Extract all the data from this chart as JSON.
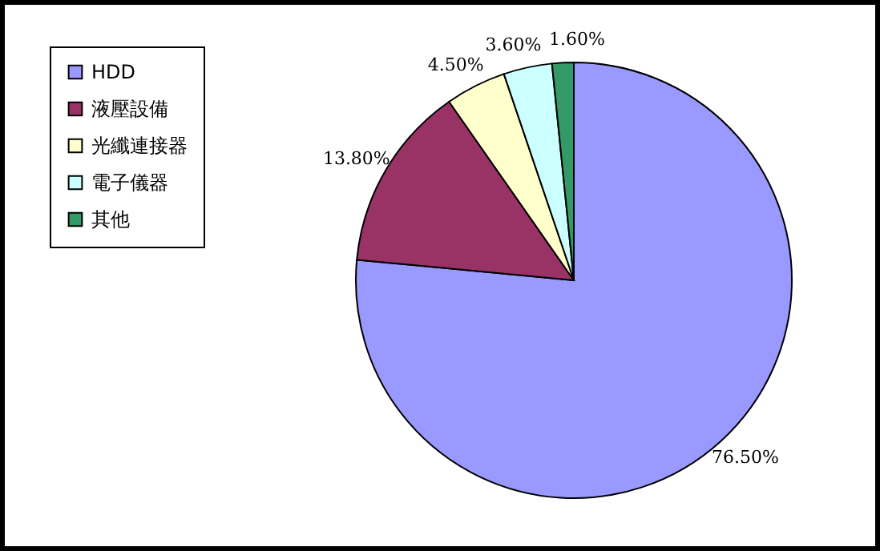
{
  "chart_data": {
    "type": "pie",
    "categories": [
      "HDD",
      "液壓設備",
      "光纖連接器",
      "電子儀器",
      "其他"
    ],
    "values": [
      76.5,
      13.8,
      4.5,
      3.6,
      1.6
    ],
    "colors": [
      "#9999ff",
      "#993366",
      "#ffffcc",
      "#ccffff",
      "#339966"
    ],
    "value_labels": [
      "76.50%",
      "13.80%",
      "4.50%",
      "3.60%",
      "1.60%"
    ],
    "legend": "top left"
  }
}
